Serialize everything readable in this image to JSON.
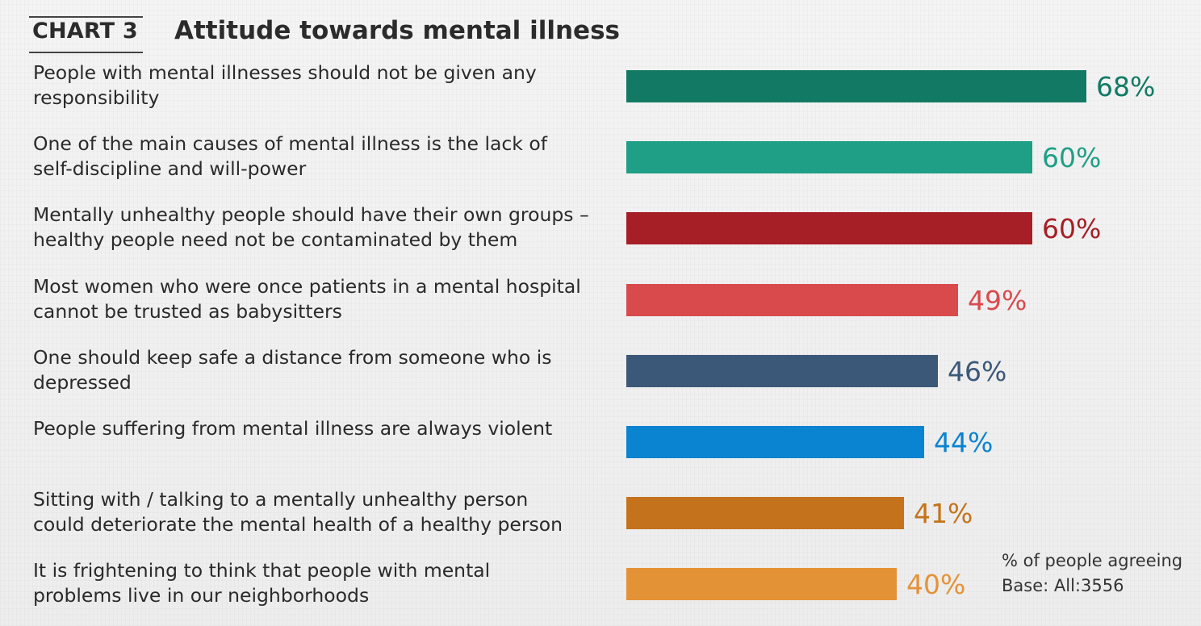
{
  "header": {
    "chart_number": "CHART 3",
    "title": "Attitude towards mental illness"
  },
  "chart_data": {
    "type": "bar",
    "orientation": "horizontal",
    "title": "Attitude towards mental illness",
    "unit": "%",
    "xlim": [
      0,
      100
    ],
    "categories": [
      [
        "People with mental illnesses should not be given any",
        "responsibility"
      ],
      [
        "One of the main causes of mental illness is the lack of",
        "self-discipline and will-power"
      ],
      [
        "Mentally unhealthy people should have their own groups –",
        "healthy people need not be contaminated by them"
      ],
      [
        "Most women who were once patients in a mental hospital",
        "cannot be trusted as babysitters"
      ],
      [
        "One should keep safe a distance from someone who is",
        "depressed"
      ],
      [
        "People suffering from mental illness are always violent"
      ],
      [
        "Sitting with / talking to a mentally unhealthy person",
        "could deteriorate the mental health of a healthy person"
      ],
      [
        "It is frightening to think that people with  mental",
        "problems live in our neighborhoods"
      ]
    ],
    "values": [
      68,
      60,
      60,
      49,
      46,
      44,
      41,
      40
    ],
    "value_labels": [
      "68%",
      "60%",
      "60%",
      "49%",
      "46%",
      "44%",
      "41%",
      "40%"
    ],
    "colors": [
      "#127a64",
      "#1f9f86",
      "#a61e26",
      "#d94a4d",
      "#3b5878",
      "#0a84d0",
      "#c4731c",
      "#e49236"
    ]
  },
  "footnote": {
    "line1": "% of people agreeing",
    "line2": "Base: All:3556"
  }
}
